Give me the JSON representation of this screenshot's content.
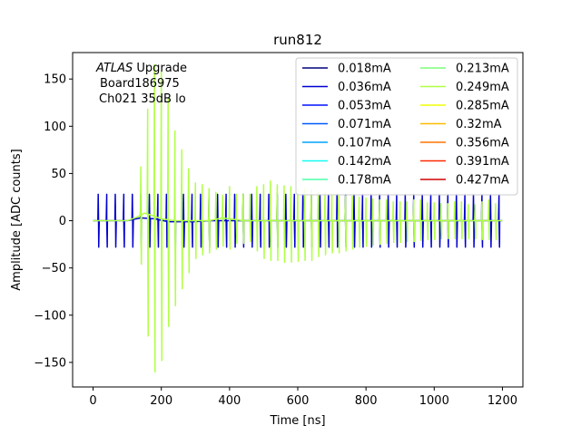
{
  "chart_data": {
    "type": "line",
    "title": "run812",
    "xlabel": "Time [ns]",
    "ylabel": "Amplitude [ADC counts]",
    "xlim": [
      -60,
      1260
    ],
    "ylim": [
      -176,
      178
    ],
    "xticks": [
      0,
      200,
      400,
      600,
      800,
      1000,
      1200
    ],
    "yticks": [
      -150,
      -100,
      -50,
      0,
      50,
      100,
      150
    ],
    "grid": false,
    "legend_placement": "top-right",
    "legend_columns": 2,
    "annotation": {
      "line1_italic": "ATLAS",
      "line1_rest": " Upgrade",
      "line2": "Board186975",
      "line3": "Ch021 35dB lo"
    },
    "series": [
      {
        "name": "0.018mA",
        "color": "#00007f"
      },
      {
        "name": "0.036mA",
        "color": "#0000d1"
      },
      {
        "name": "0.053mA",
        "color": "#0010ff"
      },
      {
        "name": "0.071mA",
        "color": "#0058ff"
      },
      {
        "name": "0.107mA",
        "color": "#00a4ff"
      },
      {
        "name": "0.142mA",
        "color": "#13fcf3"
      },
      {
        "name": "0.178mA",
        "color": "#4dffaa"
      },
      {
        "name": "0.213mA",
        "color": "#7cff79"
      },
      {
        "name": "0.249mA",
        "color": "#b0ff46"
      },
      {
        "name": "0.285mA",
        "color": "#f0ff06"
      },
      {
        "name": "0.32mA",
        "color": "#ffb900"
      },
      {
        "name": "0.356mA",
        "color": "#ff7300"
      },
      {
        "name": "0.391mA",
        "color": "#ff2900"
      },
      {
        "name": "0.427mA",
        "color": "#d10000"
      }
    ],
    "traces": [
      {
        "series_index": 1,
        "baseline": 0,
        "spike_times": [
          15,
          40,
          65,
          90,
          115,
          140,
          165,
          190,
          215,
          240,
          265,
          290,
          315,
          340,
          365,
          390,
          415,
          440,
          465,
          490,
          515,
          540,
          565,
          590,
          615,
          640,
          665,
          690,
          715,
          740,
          765,
          790,
          815,
          840,
          865,
          890,
          915,
          940,
          965,
          990,
          1015,
          1040,
          1065,
          1090,
          1115,
          1140,
          1165,
          1190
        ],
        "spike_high": 28,
        "spike_low": -28,
        "bump": [
          [
            100,
            0
          ],
          [
            140,
            3
          ],
          [
            180,
            2
          ],
          [
            220,
            -1
          ],
          [
            300,
            -1
          ],
          [
            340,
            0
          ]
        ]
      },
      {
        "series_index": 8,
        "baseline": 0,
        "spike_times": [
          140,
          160,
          180,
          200,
          220,
          240,
          260,
          280,
          300,
          320,
          340,
          360,
          380,
          400,
          420,
          440,
          460,
          480,
          500,
          520,
          540,
          560,
          580,
          600,
          620,
          640,
          660,
          680,
          700,
          720,
          740,
          760,
          780,
          800,
          820,
          840,
          860,
          880,
          900,
          920,
          940,
          960,
          980,
          1000,
          1020,
          1040,
          1060,
          1080,
          1100,
          1120,
          1140,
          1160,
          1180
        ],
        "spike_high": [
          57,
          118,
          165,
          158,
          130,
          95,
          75,
          55,
          40,
          38,
          34,
          30,
          27,
          36,
          28,
          28,
          28,
          36,
          38,
          42,
          38,
          37,
          36,
          34,
          34,
          33,
          30,
          30,
          28,
          28,
          26,
          26,
          25,
          24,
          23,
          22,
          22,
          20,
          20,
          20,
          22,
          22,
          19,
          19,
          18,
          18,
          20,
          20,
          17,
          17,
          20,
          22,
          18
        ],
        "spike_low": [
          -46,
          -122,
          -160,
          -148,
          -112,
          -90,
          -72,
          -55,
          -40,
          -36,
          -34,
          -30,
          -27,
          -30,
          -24,
          -24,
          -22,
          -32,
          -40,
          -42,
          -42,
          -44,
          -44,
          -43,
          -42,
          -42,
          -38,
          -36,
          -34,
          -34,
          -32,
          -30,
          -28,
          -27,
          -26,
          -25,
          -24,
          -23,
          -23,
          -22,
          -22,
          -21,
          -20,
          -20,
          -19,
          -19,
          -19,
          -19,
          -19,
          -19,
          -20,
          -20,
          -20
        ],
        "bump": [
          [
            100,
            0
          ],
          [
            130,
            4
          ],
          [
            150,
            8
          ],
          [
            170,
            6
          ],
          [
            200,
            2
          ],
          [
            240,
            0
          ],
          [
            340,
            0
          ],
          [
            380,
            3
          ],
          [
            400,
            2
          ],
          [
            440,
            0
          ],
          [
            520,
            0
          ]
        ]
      }
    ]
  }
}
